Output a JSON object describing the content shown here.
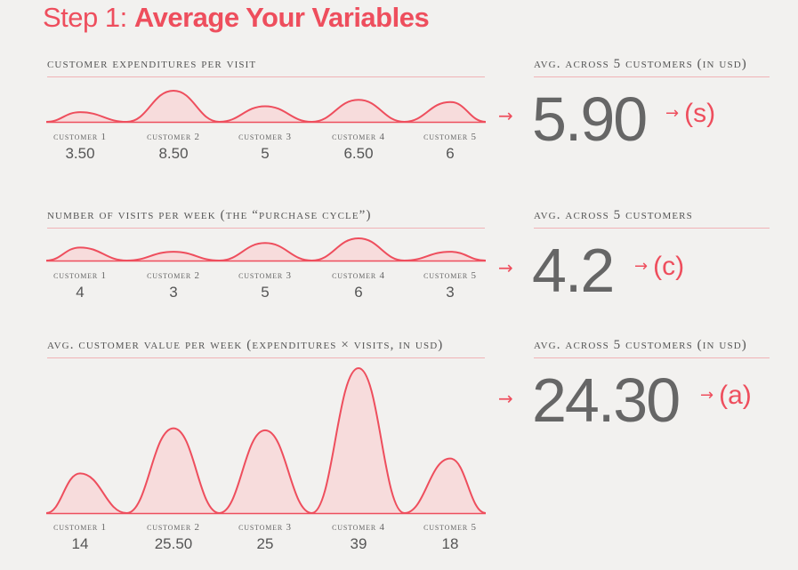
{
  "title": {
    "prefix": "Step 1:",
    "main": "Average Your Variables"
  },
  "sections": [
    {
      "label": "customer expenditures per visit",
      "avg_label": "avg. across 5 customers (in usd)",
      "avg_value": "5.90",
      "variable": "(s)",
      "customers": [
        "customer 1",
        "customer 2",
        "customer 3",
        "customer 4",
        "customer 5"
      ],
      "value_labels": [
        "3.50",
        "8.50",
        "5",
        "6.50",
        "6"
      ]
    },
    {
      "label": "number of visits per week (the “purchase cycle”)",
      "avg_label": "avg. across 5 customers",
      "avg_value": "4.2",
      "variable": "(c)",
      "customers": [
        "customer 1",
        "customer 2",
        "customer 3",
        "customer 4",
        "customer 5"
      ],
      "value_labels": [
        "4",
        "3",
        "5",
        "6",
        "3"
      ]
    },
    {
      "label": "avg. customer value per week (expenditures × visits, in usd)",
      "avg_label": "avg. across 5 customers (in usd)",
      "avg_value": "24.30",
      "variable": "(a)",
      "customers": [
        "customer 1",
        "customer 2",
        "customer 3",
        "customer 4",
        "customer 5"
      ],
      "value_labels": [
        "14",
        "25.50",
        "25",
        "39",
        "18"
      ]
    }
  ],
  "colors": {
    "accent": "#ee4e5d",
    "fill": "#f7dcdc",
    "text": "#555555",
    "big_number": "#666666",
    "background": "#f2f1ef"
  },
  "chart_data": [
    {
      "type": "area",
      "title": "customer expenditures per visit",
      "categories": [
        "customer 1",
        "customer 2",
        "customer 3",
        "customer 4",
        "customer 5"
      ],
      "values": [
        3.5,
        8.5,
        5,
        6.5,
        6
      ]
    },
    {
      "type": "area",
      "title": "number of visits per week (the “purchase cycle”)",
      "categories": [
        "customer 1",
        "customer 2",
        "customer 3",
        "customer 4",
        "customer 5"
      ],
      "values": [
        4,
        3,
        5,
        6,
        3
      ]
    },
    {
      "type": "area",
      "title": "avg. customer value per week (expenditures × visits, in usd)",
      "categories": [
        "customer 1",
        "customer 2",
        "customer 3",
        "customer 4",
        "customer 5"
      ],
      "values": [
        14,
        25.5,
        25,
        39,
        18
      ]
    }
  ]
}
